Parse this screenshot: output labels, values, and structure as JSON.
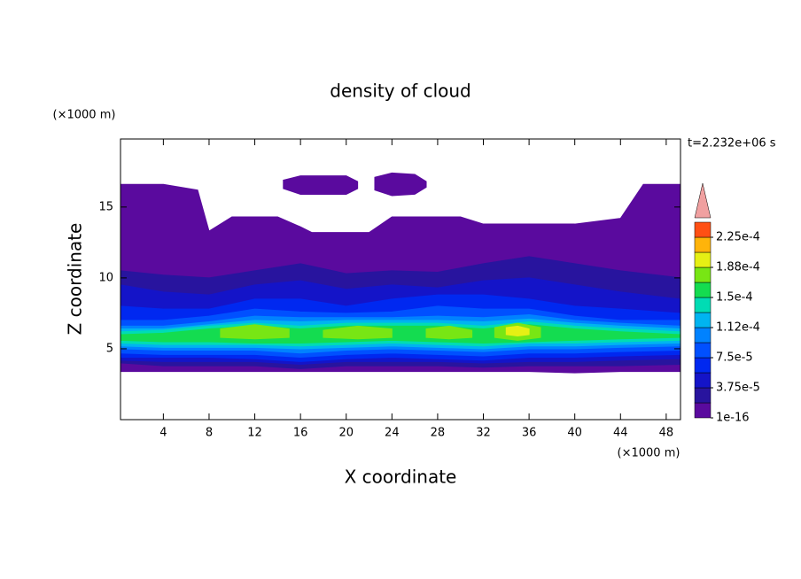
{
  "chart_data": {
    "type": "contour",
    "title": "density of cloud",
    "time_label": "t=2.232e+06 s",
    "x_label": "X coordinate",
    "y_label": "Z coordinate",
    "x_unit": "(×1000 m)",
    "y_unit": "(×1000 m)",
    "xlim": [
      0.25,
      49.25
    ],
    "ylim": [
      0,
      19.8
    ],
    "xticks": [
      4,
      8,
      12,
      16,
      20,
      24,
      28,
      32,
      36,
      40,
      44,
      48
    ],
    "yticks": [
      5,
      10,
      15
    ],
    "colorbar": {
      "levels": [
        1e-16,
        1.875e-05,
        3.75e-05,
        5.625e-05,
        7.5e-05,
        9.375e-05,
        0.0001125,
        0.00013125,
        0.00015,
        0.00016875,
        0.0001875,
        0.00020625,
        0.000225,
        0.00024375
      ],
      "colors": [
        "#5a0a9e",
        "#28149e",
        "#1414c8",
        "#0028f0",
        "#0050ff",
        "#0082ff",
        "#00b4f0",
        "#00dcb4",
        "#14dc50",
        "#78e614",
        "#e6f014",
        "#ffb40a",
        "#ff5014"
      ],
      "extend_color": "#f0a0a0",
      "ticks": [
        {
          "value": 1e-16,
          "label": "1e-16"
        },
        {
          "value": 3.75e-05,
          "label": "3.75e-5"
        },
        {
          "value": 7.5e-05,
          "label": "7.5e-5"
        },
        {
          "value": 0.0001125,
          "label": "1.12e-4"
        },
        {
          "value": 0.00015,
          "label": "1.5e-4"
        },
        {
          "value": 0.0001875,
          "label": "1.88e-4"
        },
        {
          "value": 0.000225,
          "label": "2.25e-4"
        }
      ]
    },
    "layers": [
      {
        "level": 1e-16,
        "x": [
          0.25,
          4,
          7,
          8,
          10,
          14,
          16,
          17,
          22,
          24,
          30,
          32,
          36,
          40,
          44,
          46,
          49.25
        ],
        "top": [
          16.6,
          16.6,
          16.2,
          13.3,
          14.3,
          14.3,
          13.6,
          13.2,
          13.2,
          14.3,
          14.3,
          13.8,
          13.8,
          13.8,
          14.2,
          16.6,
          16.6
        ],
        "bottom": [
          3.4,
          3.4,
          3.4,
          3.4,
          3.4,
          3.4,
          3.4,
          3.4,
          3.4,
          3.4,
          3.4,
          3.4,
          3.4,
          3.3,
          3.4,
          3.4,
          3.4
        ]
      },
      {
        "level": 1e-16,
        "x": [
          14.5,
          16,
          20,
          21
        ],
        "top": [
          16.9,
          17.2,
          17.2,
          16.8
        ],
        "bottom": [
          16.3,
          15.9,
          15.9,
          16.3
        ]
      },
      {
        "level": 1e-16,
        "x": [
          22.5,
          24,
          26,
          27
        ],
        "top": [
          17.1,
          17.4,
          17.3,
          16.8
        ],
        "bottom": [
          16.2,
          15.8,
          15.9,
          16.4
        ]
      },
      {
        "level": 1.875e-05,
        "x": [
          0.25,
          4,
          8,
          12,
          16,
          20,
          24,
          28,
          32,
          36,
          40,
          44,
          49.25
        ],
        "top": [
          10.5,
          10.2,
          10,
          10.5,
          11,
          10.3,
          10.5,
          10.4,
          11,
          11.5,
          11,
          10.5,
          10
        ],
        "bottom": [
          4,
          3.8,
          3.8,
          3.8,
          3.6,
          3.8,
          3.8,
          3.8,
          3.7,
          3.8,
          3.8,
          3.8,
          3.9
        ]
      },
      {
        "level": 3.75e-05,
        "x": [
          0.25,
          4,
          8,
          12,
          16,
          20,
          24,
          28,
          32,
          36,
          40,
          44,
          49.25
        ],
        "top": [
          9.5,
          9,
          8.8,
          9.5,
          9.8,
          9.2,
          9.5,
          9.3,
          9.8,
          10,
          9.5,
          9,
          8.5
        ],
        "bottom": [
          4.2,
          4.1,
          4.1,
          4.1,
          3.9,
          4.1,
          4.1,
          4.1,
          4,
          4.1,
          4.1,
          4.2,
          4.3
        ]
      },
      {
        "level": 5.625e-05,
        "x": [
          0.25,
          4,
          8,
          12,
          16,
          20,
          24,
          28,
          32,
          36,
          40,
          44,
          49.25
        ],
        "top": [
          8,
          7.8,
          7.8,
          8.5,
          8.5,
          8,
          8.5,
          8.8,
          8.8,
          8.5,
          8,
          7.8,
          7.5
        ],
        "bottom": [
          4.4,
          4.4,
          4.4,
          4.3,
          4.1,
          4.3,
          4.4,
          4.3,
          4.2,
          4.4,
          4.4,
          4.5,
          4.6
        ]
      },
      {
        "level": 7.5e-05,
        "x": [
          0.25,
          4,
          8,
          12,
          16,
          20,
          24,
          28,
          32,
          36,
          40,
          44,
          49.25
        ],
        "top": [
          7,
          7,
          7.3,
          7.8,
          7.6,
          7.5,
          7.6,
          8,
          7.8,
          7.8,
          7.3,
          7,
          7
        ],
        "bottom": [
          4.7,
          4.6,
          4.6,
          4.6,
          4.4,
          4.6,
          4.7,
          4.6,
          4.5,
          4.7,
          4.7,
          4.8,
          4.9
        ]
      },
      {
        "level": 9.375e-05,
        "x": [
          0.25,
          4,
          8,
          12,
          16,
          20,
          24,
          28,
          32,
          36,
          40,
          44,
          49.25
        ],
        "top": [
          6.6,
          6.6,
          6.9,
          7.3,
          7.2,
          7.2,
          7.2,
          7.3,
          7.2,
          7.4,
          7,
          6.8,
          6.6
        ],
        "bottom": [
          5,
          4.9,
          4.9,
          4.9,
          4.7,
          4.9,
          5,
          4.9,
          4.8,
          5,
          5,
          5.1,
          5.2
        ]
      },
      {
        "level": 0.0001125,
        "x": [
          0.25,
          4,
          8,
          12,
          16,
          20,
          24,
          28,
          32,
          36,
          40,
          44,
          49.25
        ],
        "top": [
          6.4,
          6.4,
          6.7,
          7,
          6.9,
          7,
          7,
          7,
          6.9,
          7.1,
          6.8,
          6.6,
          6.4
        ],
        "bottom": [
          5.2,
          5.1,
          5.1,
          5.1,
          5,
          5.1,
          5.2,
          5.1,
          5,
          5.2,
          5.2,
          5.3,
          5.4
        ]
      },
      {
        "level": 0.00013125,
        "x": [
          0.25,
          4,
          8,
          12,
          16,
          20,
          24,
          28,
          32,
          36,
          40,
          44,
          49.25
        ],
        "top": [
          6.2,
          6.3,
          6.6,
          6.8,
          6.6,
          6.8,
          6.8,
          6.8,
          6.6,
          6.9,
          6.6,
          6.4,
          6.2
        ],
        "bottom": [
          5.4,
          5.3,
          5.3,
          5.3,
          5.2,
          5.3,
          5.4,
          5.3,
          5.2,
          5.4,
          5.4,
          5.5,
          5.6
        ]
      },
      {
        "level": 0.00015,
        "x": [
          0.25,
          4,
          8,
          12,
          16,
          20,
          24,
          28,
          32,
          36,
          40,
          44,
          49.25
        ],
        "top": [
          6,
          6.1,
          6.4,
          6.6,
          6.4,
          6.6,
          6.6,
          6.6,
          6.4,
          6.7,
          6.4,
          6.2,
          6
        ],
        "bottom": [
          5.6,
          5.5,
          5.5,
          5.4,
          5.4,
          5.5,
          5.6,
          5.5,
          5.4,
          5.5,
          5.6,
          5.7,
          5.8
        ]
      },
      {
        "level": 0.00016875,
        "x": [
          9,
          12,
          15
        ],
        "top": [
          6.4,
          6.7,
          6.4
        ],
        "bottom": [
          5.8,
          5.7,
          5.8
        ]
      },
      {
        "level": 0.00016875,
        "x": [
          18,
          21,
          24
        ],
        "top": [
          6.3,
          6.6,
          6.4
        ],
        "bottom": [
          5.8,
          5.7,
          5.8
        ]
      },
      {
        "level": 0.00016875,
        "x": [
          27,
          29,
          31
        ],
        "top": [
          6.4,
          6.6,
          6.3
        ],
        "bottom": [
          5.8,
          5.7,
          5.8
        ]
      },
      {
        "level": 0.00016875,
        "x": [
          33,
          35,
          37
        ],
        "top": [
          6.5,
          6.8,
          6.5
        ],
        "bottom": [
          5.8,
          5.6,
          5.8
        ]
      },
      {
        "level": 0.0001875,
        "x": [
          34,
          35,
          36
        ],
        "top": [
          6.5,
          6.6,
          6.4
        ],
        "bottom": [
          6,
          5.9,
          6
        ]
      }
    ]
  }
}
